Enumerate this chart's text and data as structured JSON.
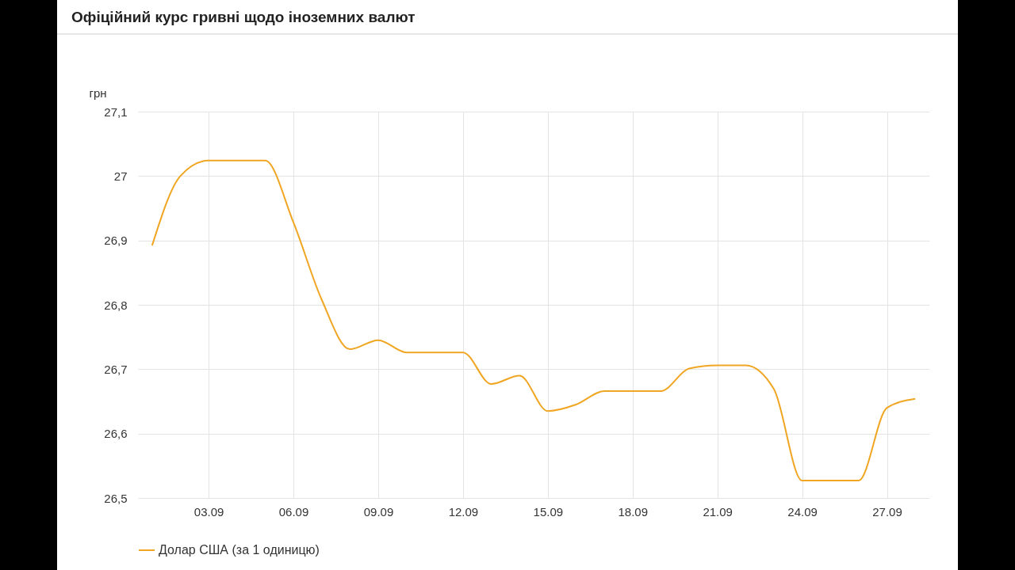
{
  "chart_data": {
    "type": "line",
    "title": "Офіційний курс гривні щодо іноземних валют",
    "ylabel": "грн",
    "x": [
      "--09-01",
      "--09-02",
      "--09-03",
      "--09-04",
      "--09-05",
      "--09-06",
      "--09-07",
      "--09-08",
      "--09-09",
      "--09-10",
      "--09-11",
      "--09-12",
      "--09-13",
      "--09-14",
      "--09-15",
      "--09-16",
      "--09-17",
      "--09-18",
      "--09-19",
      "--09-20",
      "--09-21",
      "--09-22",
      "--09-23",
      "--09-24",
      "--09-25",
      "--09-26",
      "--09-27",
      "--09-28"
    ],
    "series": [
      {
        "name": "Долар США (за 1 одиницю)",
        "color": "#f0a622",
        "values": [
          26.892,
          27.0,
          27.024,
          27.024,
          27.024,
          26.928,
          26.808,
          26.731,
          26.745,
          26.726,
          26.726,
          26.726,
          26.677,
          26.69,
          26.635,
          26.645,
          26.666,
          26.666,
          26.666,
          26.701,
          26.706,
          26.706,
          26.669,
          26.527,
          26.527,
          26.527,
          26.64,
          26.654
        ]
      }
    ],
    "xlim": [
      "--08-31T12:00",
      "--09-28T12:00"
    ],
    "xticks": [
      {
        "value": "--09-03",
        "label": "03.09"
      },
      {
        "value": "--09-06",
        "label": "06.09"
      },
      {
        "value": "--09-09",
        "label": "09.09"
      },
      {
        "value": "--09-12",
        "label": "12.09"
      },
      {
        "value": "--09-15",
        "label": "15.09"
      },
      {
        "value": "--09-18",
        "label": "18.09"
      },
      {
        "value": "--09-21",
        "label": "21.09"
      },
      {
        "value": "--09-24",
        "label": "24.09"
      },
      {
        "value": "--09-27",
        "label": "27.09"
      }
    ],
    "ylim": [
      26.5,
      27.1
    ],
    "yticks": [
      {
        "value": 26.5,
        "label": "26,5"
      },
      {
        "value": 26.6,
        "label": "26,6"
      },
      {
        "value": 26.7,
        "label": "26,7"
      },
      {
        "value": 26.8,
        "label": "26,8"
      },
      {
        "value": 26.9,
        "label": "26,9"
      },
      27,
      {
        "value": 27.1,
        "label": "27,1"
      }
    ],
    "grid": true,
    "legend": "bottom",
    "line_style": "solid"
  }
}
